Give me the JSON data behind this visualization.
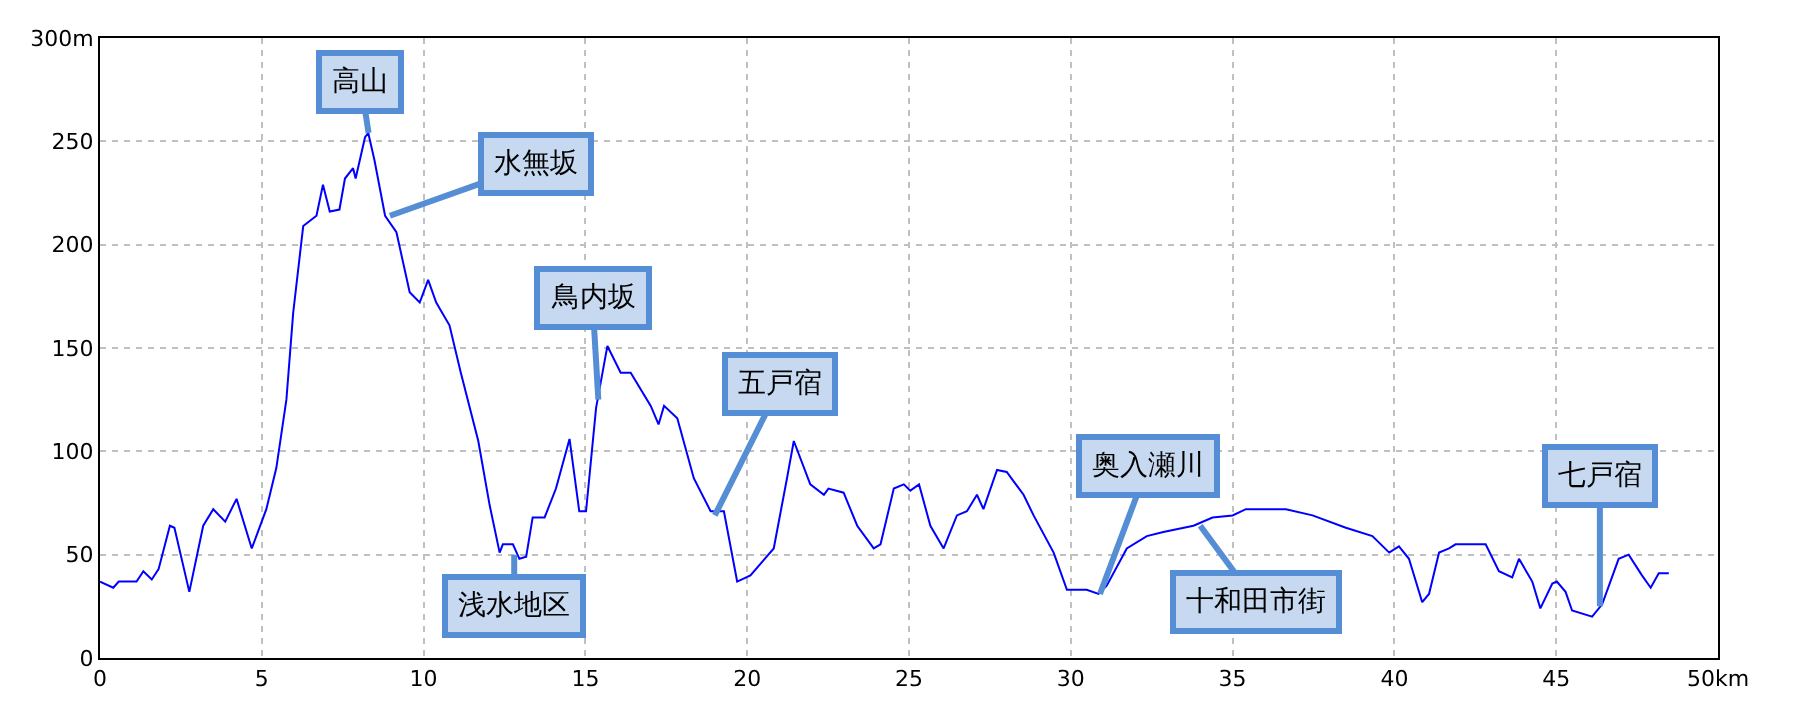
{
  "chart_data": {
    "type": "line",
    "x": [
      0,
      0.41,
      0.58,
      1.13,
      1.34,
      1.6,
      1.81,
      2.16,
      2.3,
      2.76,
      3.19,
      3.5,
      3.87,
      4.22,
      4.69,
      5.14,
      5.45,
      5.76,
      5.97,
      6.28,
      6.69,
      6.89,
      7.1,
      7.4,
      7.57,
      7.82,
      7.9,
      8.19,
      8.29,
      8.48,
      8.81,
      9.16,
      9.57,
      9.88,
      10.14,
      10.39,
      10.8,
      11.15,
      11.69,
      12.04,
      12.35,
      12.45,
      12.76,
      12.96,
      13.17,
      13.37,
      13.74,
      14.09,
      14.51,
      14.81,
      15.02,
      15.33,
      15.68,
      16.09,
      16.4,
      17.02,
      17.26,
      17.43,
      17.84,
      18.35,
      18.87,
      19.28,
      19.69,
      20.1,
      20.82,
      21.23,
      21.44,
      21.95,
      22.37,
      22.51,
      22.98,
      23.4,
      23.91,
      24.12,
      24.53,
      24.84,
      25.04,
      25.31,
      25.66,
      26.07,
      26.48,
      26.79,
      27.1,
      27.3,
      27.72,
      28.02,
      28.54,
      28.85,
      29.47,
      29.88,
      30.49,
      30.86,
      31.11,
      31.73,
      32.35,
      32.86,
      33.79,
      34.38,
      35,
      35.41,
      36.65,
      37.47,
      38.5,
      39.32,
      39.84,
      40.14,
      40.45,
      40.86,
      41.07,
      41.38,
      41.69,
      41.89,
      42.82,
      43.23,
      43.64,
      43.85,
      44.26,
      44.51,
      44.88,
      45.02,
      45.29,
      45.49,
      46.11,
      46.42,
      46.93,
      47.24,
      47.65,
      47.92,
      48.17,
      48.48
    ],
    "series": [
      {
        "color": "#0000ff",
        "values": [
          37,
          34,
          37,
          37,
          42,
          38,
          43,
          64,
          63,
          32,
          64,
          72,
          66,
          77,
          53,
          72,
          92,
          125,
          167,
          209,
          214,
          229,
          216,
          217,
          232,
          237,
          232,
          252,
          254,
          241,
          214,
          206,
          177,
          172,
          183,
          172,
          161,
          138,
          105,
          74,
          51,
          55,
          55,
          48,
          49,
          68,
          68,
          82,
          106,
          71,
          71,
          121,
          151,
          138,
          138,
          122,
          113,
          122,
          116,
          87,
          71,
          71,
          37,
          40,
          53,
          87,
          105,
          84,
          79,
          82,
          80,
          64,
          53,
          55,
          82,
          84,
          81,
          84,
          64,
          53,
          69,
          71,
          79,
          72,
          91,
          90,
          79,
          69,
          51,
          33,
          33,
          31,
          35,
          53,
          59,
          61,
          64,
          68,
          69,
          72,
          72,
          69,
          63,
          59,
          51,
          54,
          48,
          27,
          31,
          51,
          53,
          55,
          55,
          42,
          39,
          48,
          37,
          24,
          36,
          37,
          32,
          23,
          20,
          26,
          48,
          50,
          40,
          34,
          41,
          41
        ]
      }
    ],
    "xlim": [
      0,
      50
    ],
    "ylim": [
      0,
      300
    ],
    "xticks": [
      0,
      5,
      10,
      15,
      20,
      25,
      30,
      35,
      40,
      45,
      {
        "value": 50,
        "label": "50km"
      }
    ],
    "yticks": [
      0,
      50,
      100,
      150,
      200,
      250,
      {
        "value": 300,
        "label": "300m"
      }
    ],
    "grid": true,
    "marker": "none",
    "line_style": "solid",
    "annotations": [
      {
        "text": "高山",
        "x": 8.3,
        "y": 254
      },
      {
        "text": "水無坂",
        "x": 8.96,
        "y": 214
      },
      {
        "text": "鳥内坂",
        "x": 15.4,
        "y": 125
      },
      {
        "text": "浅水地区",
        "x": 12.8,
        "y": 50
      },
      {
        "text": "五戸宿",
        "x": 19.0,
        "y": 69
      },
      {
        "text": "奥入瀬川",
        "x": 30.9,
        "y": 31
      },
      {
        "text": "十和田市街",
        "x": 34.0,
        "y": 64
      },
      {
        "text": "七戸宿",
        "x": 46.35,
        "y": 25
      }
    ]
  }
}
